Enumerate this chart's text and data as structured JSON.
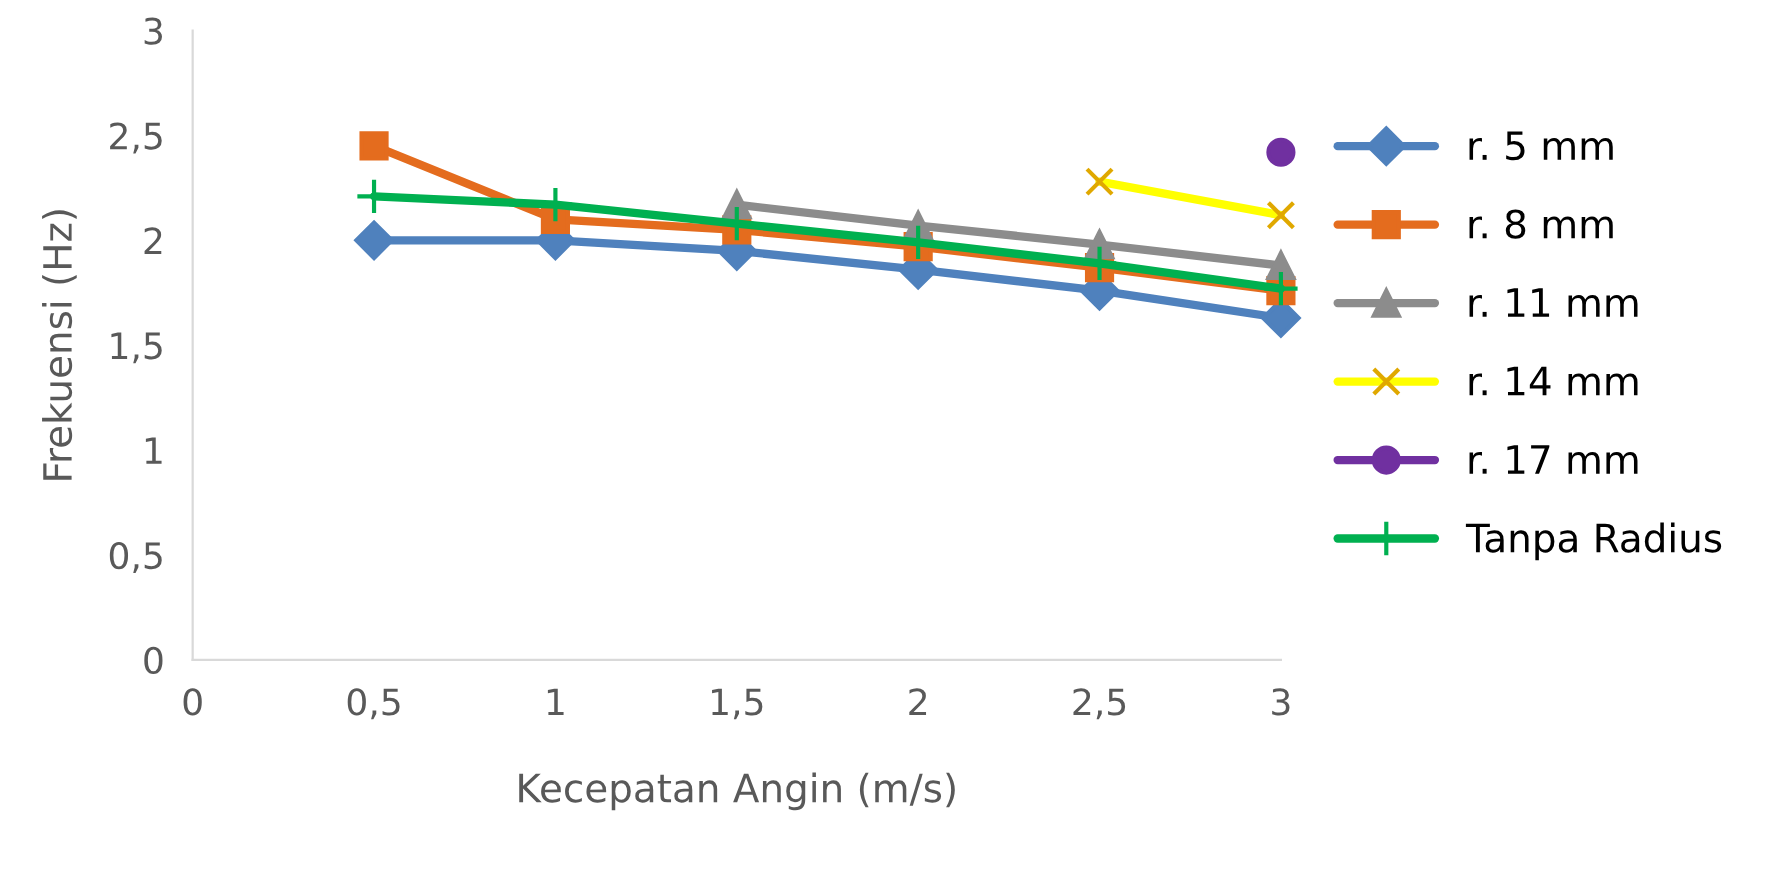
{
  "chart_data": {
    "type": "line",
    "xlabel": "Kecepatan Angin (m/s)",
    "ylabel": "Frekuensi (Hz)",
    "x": [
      0.5,
      1,
      1.5,
      2,
      2.5,
      3
    ],
    "xlim": [
      0,
      3
    ],
    "xticks": [
      0,
      {
        "value": 0.5,
        "label": "0,5"
      },
      1,
      {
        "value": 1.5,
        "label": "1,5"
      },
      2,
      {
        "value": 2.5,
        "label": "2,5"
      },
      3
    ],
    "ylim": [
      0,
      3
    ],
    "yticks": [
      0,
      {
        "value": 0.5,
        "label": "0,5"
      },
      1,
      {
        "value": 1.5,
        "label": "1,5"
      },
      2,
      {
        "value": 2.5,
        "label": "2,5"
      },
      3
    ],
    "grid": false,
    "legend": "right",
    "series": [
      {
        "name": "r. 5 mm",
        "color": "#4f81bd",
        "marker": "diamond",
        "values": [
          2.0,
          2.0,
          1.95,
          1.86,
          1.76,
          1.63
        ]
      },
      {
        "name": "r. 8 mm",
        "color": "#e46c1e",
        "marker": "square",
        "values": [
          2.45,
          2.1,
          2.05,
          1.97,
          1.87,
          1.76
        ]
      },
      {
        "name": "r. 11 mm",
        "color": "#8c8c8c",
        "marker": "triangle",
        "values": [
          null,
          null,
          2.17,
          2.07,
          1.98,
          1.88
        ]
      },
      {
        "name": "r. 14 mm",
        "color": "#ffff00",
        "marker": "cross",
        "values": [
          null,
          null,
          null,
          null,
          2.28,
          2.12
        ]
      },
      {
        "name": "r. 17 mm",
        "color": "#7030a0",
        "marker": "circle",
        "values": [
          null,
          null,
          null,
          null,
          null,
          2.42
        ]
      },
      {
        "name": "Tanpa Radius",
        "color": "#00b050",
        "marker": "plus",
        "values": [
          2.21,
          2.17,
          2.08,
          1.99,
          1.89,
          1.77
        ]
      }
    ]
  }
}
